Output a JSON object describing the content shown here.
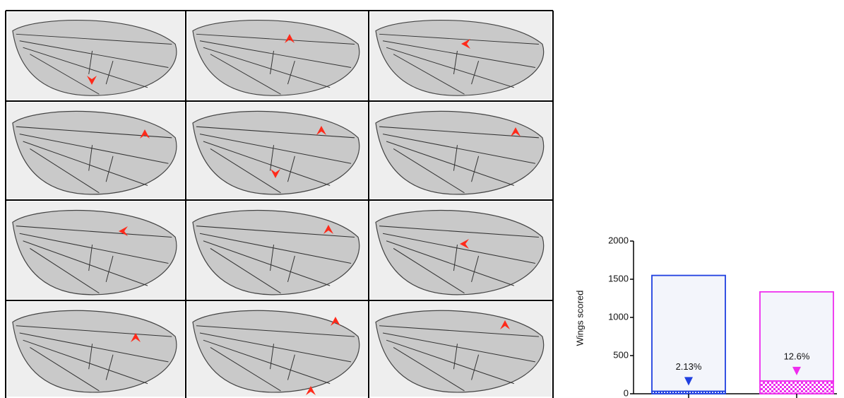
{
  "chart_data": {
    "type": "bar",
    "stacked": true,
    "y_label": "Wings scored",
    "categories": [
      null,
      null
    ],
    "bar_colors": [
      "#1f3fe0",
      "#ee2cee"
    ],
    "series": [
      {
        "values": [
          33,
          168
        ]
      },
      {
        "values": [
          1517,
          1167
        ]
      }
    ],
    "annotations": [
      "2.13%",
      "12.6%"
    ],
    "ylim": [
      0,
      2000
    ],
    "yticks": [
      0,
      500,
      1000,
      1500,
      2000
    ]
  }
}
